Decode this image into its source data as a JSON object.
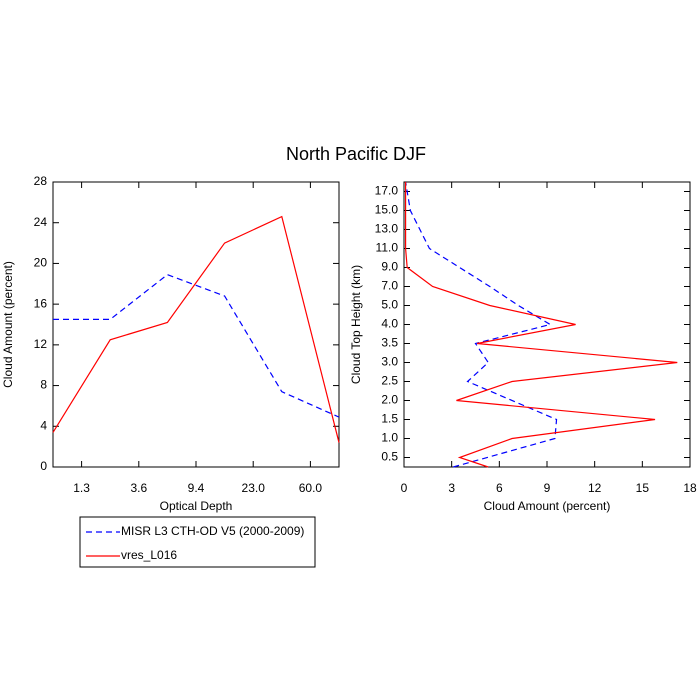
{
  "title": "North Pacific DJF",
  "chart_data": [
    {
      "type": "line",
      "x_label": "Optical Depth",
      "y_label": "Cloud Amount (percent)",
      "x": [
        0,
        1,
        2,
        3,
        4,
        5
      ],
      "xlim": [
        0,
        5
      ],
      "xticks": [
        {
          "value": 0.5,
          "label": "1.3"
        },
        {
          "value": 1.5,
          "label": "3.6"
        },
        {
          "value": 2.5,
          "label": "9.4"
        },
        {
          "value": 3.5,
          "label": "23.0"
        },
        {
          "value": 4.5,
          "label": "60.0"
        }
      ],
      "ylim": [
        0,
        28
      ],
      "yticks": [
        0,
        4,
        8,
        12,
        16,
        20,
        24,
        28
      ],
      "series": [
        {
          "name": "MISR L3 CTH-OD V5 (2000-2009)",
          "color": "#0000ff",
          "style": "dashed",
          "values": [
            14.5,
            14.5,
            18.9,
            16.8,
            7.4,
            4.9
          ]
        },
        {
          "name": "vres_L016",
          "color": "#ff0000",
          "style": "solid",
          "values": [
            3.4,
            12.5,
            14.2,
            22.0,
            24.6,
            2.4
          ]
        }
      ]
    },
    {
      "type": "hline",
      "x_label": "Cloud Amount (percent)",
      "y_label": "Cloud Top Height (km)",
      "xlim": [
        0,
        18
      ],
      "xticks": [
        0,
        3,
        6,
        9,
        12,
        15,
        18
      ],
      "ylim": [
        -0.5,
        14.5
      ],
      "yticks": [
        {
          "value": 0,
          "label": "0.5"
        },
        {
          "value": 1,
          "label": "1.0"
        },
        {
          "value": 2,
          "label": "1.5"
        },
        {
          "value": 3,
          "label": "2.0"
        },
        {
          "value": 4,
          "label": "2.5"
        },
        {
          "value": 5,
          "label": "3.0"
        },
        {
          "value": 6,
          "label": "3.5"
        },
        {
          "value": 7,
          "label": "4.0"
        },
        {
          "value": 8,
          "label": "5.0"
        },
        {
          "value": 9,
          "label": "7.0"
        },
        {
          "value": 10,
          "label": "9.0"
        },
        {
          "value": 11,
          "label": "11.0"
        },
        {
          "value": 12,
          "label": "13.0"
        },
        {
          "value": 13,
          "label": "15.0"
        },
        {
          "value": 14,
          "label": "17.0"
        }
      ],
      "series": [
        {
          "color": "#0000ff",
          "style": "dashed",
          "y": [
            -0.5,
            1,
            2,
            4,
            5,
            6,
            7,
            8,
            9,
            11,
            13,
            14.5
          ],
          "values": [
            3.1,
            9.5,
            9.6,
            4.0,
            5.3,
            4.5,
            9.2,
            7.2,
            5.4,
            1.6,
            0.4,
            0.1
          ]
        },
        {
          "color": "#ff0000",
          "style": "solid",
          "y": [
            -0.5,
            0,
            1,
            2,
            3,
            4,
            5,
            6,
            7,
            8,
            9,
            10,
            11,
            14.5
          ],
          "values": [
            5.3,
            3.5,
            6.8,
            15.8,
            3.3,
            6.8,
            17.2,
            4.6,
            10.8,
            5.4,
            1.8,
            0.2,
            0.1,
            0.1
          ]
        }
      ]
    }
  ]
}
